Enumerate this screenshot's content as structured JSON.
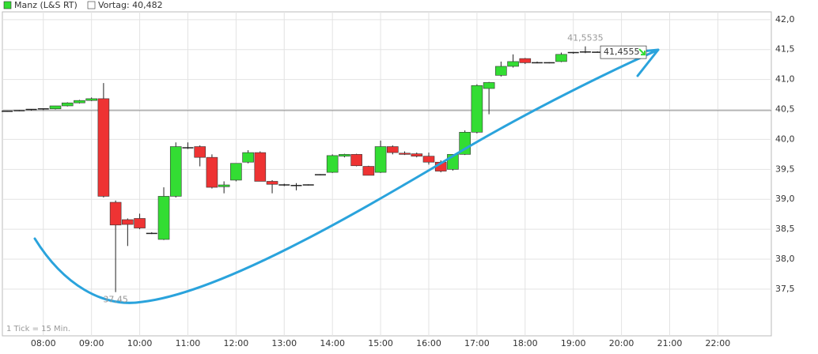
{
  "chart_data": {
    "type": "candlestick",
    "series": [
      {
        "name": "Manz (L&S RT)",
        "up_color": "#33dd33",
        "down_color": "#ee3333",
        "x": [
          7.25,
          7.5,
          7.75,
          8,
          8.25,
          8.5,
          8.75,
          9,
          9.25,
          9.5,
          9.75,
          10,
          10.25,
          10.5,
          10.75,
          11,
          11.25,
          11.5,
          11.75,
          12,
          12.25,
          12.5,
          12.75,
          13,
          13.25,
          13.5,
          13.75,
          14,
          14.25,
          14.5,
          14.75,
          15,
          15.25,
          15.5,
          15.75,
          16,
          16.25,
          16.5,
          16.75,
          17,
          17.25,
          17.5,
          17.75,
          18,
          18.25,
          18.5,
          18.75,
          19,
          19.25,
          19.5
        ],
        "open": [
          40.47,
          40.48,
          40.49,
          40.5,
          40.51,
          40.56,
          40.61,
          40.65,
          40.68,
          38.95,
          38.66,
          38.68,
          38.44,
          38.33,
          39.05,
          39.86,
          39.88,
          39.7,
          39.21,
          39.32,
          39.62,
          39.78,
          39.3,
          39.25,
          39.24,
          39.24,
          39.41,
          39.45,
          39.72,
          39.75,
          39.55,
          39.45,
          39.88,
          39.77,
          39.76,
          39.72,
          39.62,
          39.5,
          39.75,
          40.12,
          40.85,
          41.07,
          41.22,
          41.35,
          41.28,
          41.28,
          41.3,
          41.44,
          41.45,
          41.46
        ],
        "high": [
          40.48,
          40.49,
          40.5,
          40.52,
          40.56,
          40.62,
          40.66,
          40.7,
          40.94,
          38.98,
          38.68,
          38.76,
          38.45,
          39.2,
          39.95,
          39.95,
          39.9,
          39.75,
          39.3,
          39.6,
          39.82,
          39.8,
          39.32,
          39.26,
          39.27,
          39.25,
          39.42,
          39.75,
          39.76,
          39.76,
          39.56,
          39.98,
          39.9,
          39.8,
          39.78,
          39.78,
          39.65,
          39.75,
          40.15,
          40.92,
          40.96,
          41.3,
          41.42,
          41.36,
          41.3,
          41.29,
          41.45,
          41.46,
          41.5535,
          41.47
        ],
        "low": [
          40.46,
          40.47,
          40.48,
          40.49,
          40.5,
          40.55,
          40.6,
          40.64,
          39.03,
          37.45,
          38.22,
          38.5,
          38.42,
          38.32,
          39.03,
          39.84,
          39.55,
          39.18,
          39.1,
          39.3,
          39.6,
          39.3,
          39.1,
          39.22,
          39.15,
          39.23,
          39.4,
          39.44,
          39.7,
          39.55,
          39.4,
          39.44,
          39.75,
          39.74,
          39.7,
          39.58,
          39.45,
          39.48,
          39.74,
          40.1,
          40.42,
          41.05,
          41.2,
          41.26,
          41.27,
          41.27,
          41.29,
          41.43,
          41.44,
          41.45
        ],
        "close": [
          40.47,
          40.48,
          40.5,
          40.51,
          40.56,
          40.61,
          40.65,
          40.68,
          39.05,
          38.57,
          38.58,
          38.52,
          38.43,
          39.05,
          39.88,
          39.86,
          39.7,
          39.2,
          39.24,
          39.6,
          39.78,
          39.3,
          39.25,
          39.24,
          39.23,
          39.24,
          39.41,
          39.73,
          39.75,
          39.56,
          39.4,
          39.88,
          39.78,
          39.75,
          39.72,
          39.62,
          39.47,
          39.75,
          40.12,
          40.9,
          40.95,
          41.22,
          41.3,
          41.28,
          41.28,
          41.28,
          41.42,
          41.45,
          41.46,
          41.4555
        ]
      }
    ],
    "reference": {
      "label": "Vortag: 40,482",
      "value": 40.482,
      "color": "#888888"
    },
    "annotations": [
      {
        "text": "41,5535",
        "value": 41.5535,
        "at": 48
      },
      {
        "text": "37,45",
        "value": 37.45,
        "at": 9
      }
    ],
    "last_price": {
      "text": "41,4555",
      "value": 41.4555
    },
    "footnote": "1 Tick = 15 Min.",
    "xlim": [
      7.15,
      23.11
    ],
    "ylim": [
      36.72,
      42.13
    ],
    "xticks": [
      {
        "value": 8,
        "label": "08:00"
      },
      {
        "value": 9,
        "label": "09:00"
      },
      {
        "value": 10,
        "label": "10:00"
      },
      {
        "value": 11,
        "label": "11:00"
      },
      {
        "value": 12,
        "label": "12:00"
      },
      {
        "value": 13,
        "label": "13:00"
      },
      {
        "value": 14,
        "label": "14:00"
      },
      {
        "value": 15,
        "label": "15:00"
      },
      {
        "value": 16,
        "label": "16:00"
      },
      {
        "value": 17,
        "label": "17:00"
      },
      {
        "value": 18,
        "label": "18:00"
      },
      {
        "value": 19,
        "label": "19:00"
      },
      {
        "value": 20,
        "label": "20:00"
      },
      {
        "value": 21,
        "label": "21:00"
      },
      {
        "value": 22,
        "label": "22:00"
      }
    ],
    "yticks": [
      {
        "value": 37.5,
        "label": "37,5"
      },
      {
        "value": 38,
        "label": "38,0"
      },
      {
        "value": 38.5,
        "label": "38,5"
      },
      {
        "value": 39,
        "label": "39,0"
      },
      {
        "value": 39.5,
        "label": "39,5"
      },
      {
        "value": 40,
        "label": "40,0"
      },
      {
        "value": 40.5,
        "label": "40,5"
      },
      {
        "value": 41,
        "label": "41,0"
      },
      {
        "value": 41.5,
        "label": "41,5"
      },
      {
        "value": 42,
        "label": "42,0"
      }
    ],
    "grid": true
  }
}
